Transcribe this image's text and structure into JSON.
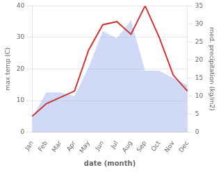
{
  "chart_data": {
    "type": "line",
    "xlabel": "date (month)",
    "ylabel": "max temp (C)",
    "y2label": "med. precipitation (kg/m2)",
    "categories": [
      "Jan",
      "Feb",
      "Mar",
      "Apr",
      "May",
      "Jun",
      "Jul",
      "Aug",
      "Sep",
      "Oct",
      "Nov",
      "Dec"
    ],
    "series": [
      {
        "type": "area",
        "axis": "y2",
        "color": "#aabbee",
        "values": [
          4,
          11,
          11,
          10,
          18,
          28,
          26,
          31,
          17,
          17,
          15,
          13
        ]
      },
      {
        "type": "line",
        "color": "#cc3333",
        "values": [
          5,
          9,
          11,
          13,
          26,
          34,
          35,
          31,
          40,
          30,
          18,
          13
        ]
      }
    ],
    "ylim": [
      0,
      40
    ],
    "yticks": [
      0,
      10,
      20,
      30,
      40
    ],
    "y2lim": [
      0,
      35
    ],
    "y2ticks": [
      0,
      5,
      10,
      15,
      20,
      25,
      30,
      35
    ],
    "grid": true
  }
}
